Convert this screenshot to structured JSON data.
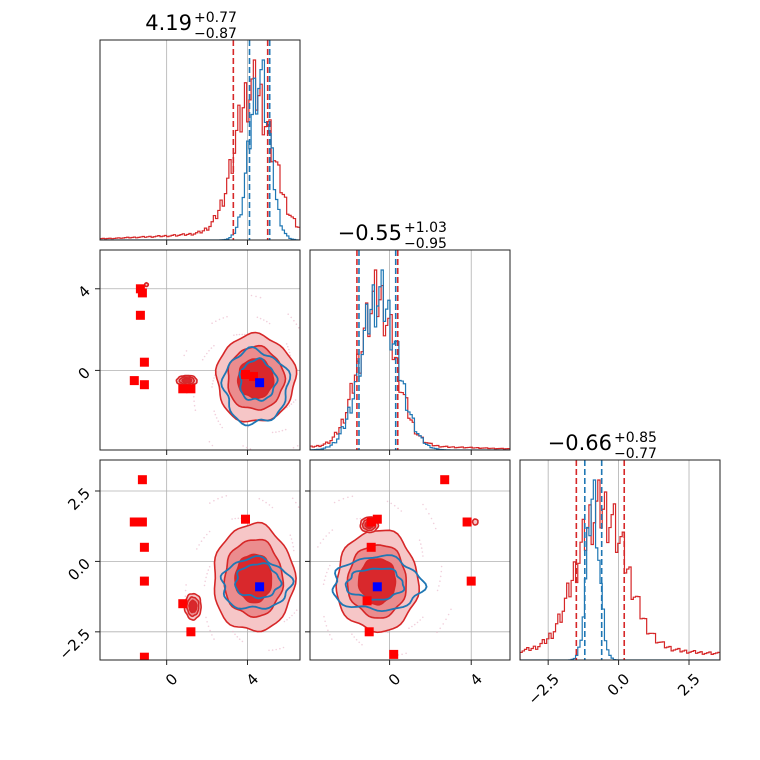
{
  "colors": {
    "red": "#d62728",
    "blue": "#1f77b4",
    "marker_red": "#ff0000",
    "marker_blue": "#0000ff",
    "fill_light": "#f6c6c7",
    "fill_mid": "#eb8c8e",
    "fill_dark": "#d9282c"
  },
  "chart_data": {
    "type": "corner",
    "grid": true,
    "parameter_ranges": [
      [
        -3.3,
        6.6
      ],
      [
        -3.9,
        5.9
      ],
      [
        -3.5,
        3.6
      ]
    ],
    "ticks": [
      {
        "values": [
          0,
          4
        ],
        "labels": [
          "0",
          "4"
        ]
      },
      {
        "values": [
          0,
          4
        ],
        "labels": [
          "0",
          "4"
        ]
      },
      {
        "values": [
          -2.5,
          0.0,
          2.5
        ],
        "labels": [
          "−2.5",
          "0.0",
          "2.5"
        ]
      }
    ],
    "titles": [
      {
        "median": "4.19",
        "upper": "+0.77",
        "lower": "−0.87"
      },
      {
        "median": "−0.55",
        "upper": "+1.03",
        "lower": "−0.95"
      },
      {
        "median": "−0.66",
        "upper": "+0.85",
        "lower": "−0.77"
      }
    ],
    "quantile_lines": {
      "red": [
        [
          3.3,
          5.0
        ],
        [
          -1.6,
          0.4
        ],
        [
          -1.5,
          0.2
        ]
      ],
      "blue": [
        [
          4.1,
          5.1
        ],
        [
          -1.5,
          0.3
        ],
        [
          -1.2,
          -0.6
        ]
      ]
    },
    "marginals": [
      {
        "red": {
          "mean": 4.3,
          "sd": 0.9,
          "tail_weight": 0.05
        },
        "blue": {
          "mean": 4.6,
          "sd": 0.5
        }
      },
      {
        "red": {
          "mean": -0.6,
          "sd": 0.9,
          "tail_weight": 0.03
        },
        "blue": {
          "mean": -0.5,
          "sd": 0.9
        }
      },
      {
        "red": {
          "mean": -0.6,
          "sd": 0.85,
          "tail_weight": 0.08
        },
        "blue": {
          "mean": -0.9,
          "sd": 0.22
        }
      }
    ],
    "joint_panels": [
      {
        "row": 1,
        "col": 0,
        "red_blobs": [
          {
            "cx": 4.4,
            "cy": -0.4,
            "rx": 1.95,
            "ry": 2.15,
            "amp": 1.0
          },
          {
            "cx": 1.0,
            "cy": -0.5,
            "rx": 0.9,
            "ry": 0.45,
            "amp": 0.32
          },
          {
            "cx": -1.0,
            "cy": 4.2,
            "rx": 0.25,
            "ry": 0.25,
            "amp": 0.12
          }
        ],
        "blue_contours": [
          {
            "cx": 4.5,
            "cy": -0.5,
            "rx": 0.9,
            "ry": 1.0
          },
          {
            "cx": 4.4,
            "cy": -0.8,
            "rx": 1.6,
            "ry": 1.8
          }
        ],
        "red_markers": [
          [
            -1.3,
            4.0
          ],
          [
            -1.2,
            3.8
          ],
          [
            -1.3,
            2.7
          ],
          [
            -1.1,
            0.4
          ],
          [
            -1.6,
            -0.5
          ],
          [
            -1.1,
            -0.7
          ],
          [
            0.8,
            -0.9
          ],
          [
            1.2,
            -0.9
          ],
          [
            3.9,
            -0.2
          ],
          [
            4.3,
            -0.3
          ]
        ],
        "blue_markers": [
          [
            4.6,
            -0.6
          ]
        ]
      },
      {
        "row": 2,
        "col": 0,
        "red_blobs": [
          {
            "cx": 4.3,
            "cy": -0.6,
            "rx": 2.0,
            "ry": 1.9,
            "amp": 1.0
          },
          {
            "cx": 1.3,
            "cy": -1.6,
            "rx": 0.75,
            "ry": 0.85,
            "amp": 0.3
          },
          {
            "cx": -1.3,
            "cy": 1.4,
            "rx": 0.5,
            "ry": 0.25,
            "amp": 0.14
          }
        ],
        "blue_contours": [
          {
            "cx": 4.5,
            "cy": -0.7,
            "rx": 1.1,
            "ry": 0.6
          },
          {
            "cx": 4.4,
            "cy": -0.8,
            "rx": 1.7,
            "ry": 0.9
          }
        ],
        "red_markers": [
          [
            -1.2,
            2.9
          ],
          [
            -1.6,
            1.4
          ],
          [
            -1.2,
            1.4
          ],
          [
            -1.1,
            0.5
          ],
          [
            -1.1,
            -0.7
          ],
          [
            0.8,
            -1.5
          ],
          [
            1.2,
            -2.5
          ],
          [
            3.9,
            1.5
          ],
          [
            -1.1,
            -3.4
          ]
        ],
        "blue_markers": [
          [
            4.6,
            -0.9
          ]
        ]
      },
      {
        "row": 2,
        "col": 1,
        "red_blobs": [
          {
            "cx": -0.6,
            "cy": -0.7,
            "rx": 2.0,
            "ry": 1.8,
            "amp": 1.0
          },
          {
            "cx": 4.2,
            "cy": 1.4,
            "rx": 0.35,
            "ry": 0.28,
            "amp": 0.14
          },
          {
            "cx": -1.0,
            "cy": 1.3,
            "rx": 0.8,
            "ry": 0.5,
            "amp": 0.3
          }
        ],
        "blue_contours": [
          {
            "cx": -0.7,
            "cy": -0.8,
            "rx": 1.4,
            "ry": 0.55
          },
          {
            "cx": -0.6,
            "cy": -0.8,
            "rx": 2.2,
            "ry": 0.95
          }
        ],
        "red_markers": [
          [
            -0.6,
            1.5
          ],
          [
            -0.9,
            1.4
          ],
          [
            -0.9,
            0.5
          ],
          [
            -1.1,
            -1.4
          ],
          [
            -1.0,
            -2.5
          ],
          [
            0.2,
            -3.3
          ],
          [
            2.7,
            2.9
          ],
          [
            3.8,
            1.4
          ],
          [
            4.0,
            -0.7
          ]
        ],
        "blue_markers": [
          [
            -0.6,
            -0.9
          ]
        ]
      }
    ]
  }
}
